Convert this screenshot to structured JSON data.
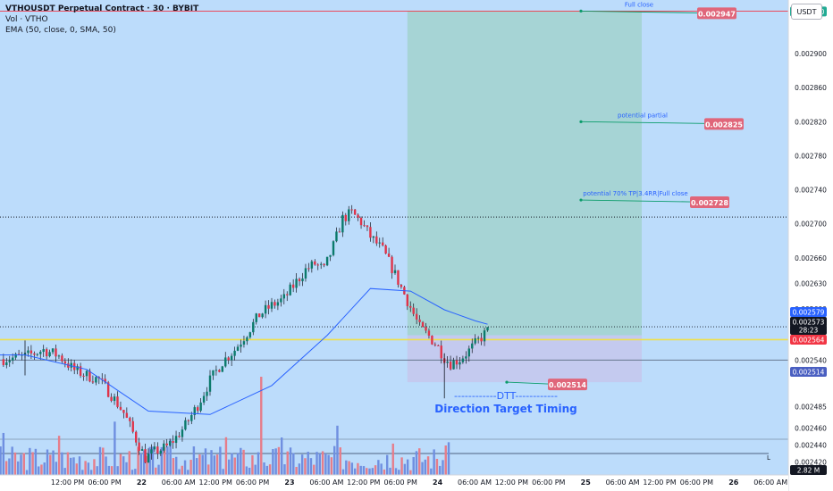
{
  "header": {
    "title": "VTHOUSDT Perpetual Contract · 30 · BYBIT",
    "volume": "Vol · VTHO",
    "ema": "EMA (50, close, 0, SMA, 50)"
  },
  "currency_label": "USDT",
  "chart_data": {
    "type": "candlestick",
    "symbol": "VTHOUSDT",
    "interval": "30",
    "exchange": "BYBIT",
    "ylim": [
      0.002405,
      0.002963
    ],
    "y_ticks": [
      0.0029,
      0.00286,
      0.00282,
      0.00278,
      0.00274,
      0.0027,
      0.00266,
      0.00263,
      0.0026,
      0.00254,
      0.002485,
      0.00246,
      0.00244,
      0.00242
    ],
    "price_badges": [
      {
        "value": "0.002950",
        "color": "#22ab94"
      },
      {
        "value": "0.002579",
        "color": "#2962ff"
      },
      {
        "value": "0.002573",
        "color": "#131722"
      },
      {
        "value": "28:23",
        "color": "#131722"
      },
      {
        "value": "0.002564",
        "color": "#f23645"
      },
      {
        "value": "0.002514",
        "color": "#4a5fc1"
      },
      {
        "value": "2.82 M",
        "color": "#131722"
      }
    ],
    "x_ticks": [
      {
        "label": "12:00 PM",
        "t": -12
      },
      {
        "label": "06:00 PM",
        "t": 0
      },
      {
        "label": "22",
        "t": 12
      },
      {
        "label": "06:00 AM",
        "t": 24
      },
      {
        "label": "12:00 PM",
        "t": 36
      },
      {
        "label": "06:00 PM",
        "t": 48
      },
      {
        "label": "23",
        "t": 60
      },
      {
        "label": "06:00 AM",
        "t": 72
      },
      {
        "label": "12:00 PM",
        "t": 84
      },
      {
        "label": "06:00 PM",
        "t": 96
      },
      {
        "label": "24",
        "t": 108
      },
      {
        "label": "06:00 AM",
        "t": 120
      },
      {
        "label": "12:00 PM",
        "t": 132
      },
      {
        "label": "06:00 PM",
        "t": 144
      },
      {
        "label": "25",
        "t": 156
      },
      {
        "label": "06:00 AM",
        "t": 168
      },
      {
        "label": "12:00 PM",
        "t": 180
      },
      {
        "label": "06:00 PM",
        "t": 192
      },
      {
        "label": "26",
        "t": 204
      },
      {
        "label": "06:00 AM",
        "t": 216
      },
      {
        "label": "12:00 PM",
        "t": 228
      },
      {
        "label": "06:00",
        "t": 240
      }
    ],
    "anchors": [
      [
        -27,
        0.002541
      ],
      [
        -20,
        0.002544
      ],
      [
        -14,
        0.002552
      ],
      [
        -9,
        0.002545
      ],
      [
        -4,
        0.002528
      ],
      [
        0,
        0.002522
      ],
      [
        4,
        0.002517
      ],
      [
        8,
        0.002499
      ],
      [
        12,
        0.002478
      ],
      [
        16,
        0.002447
      ],
      [
        19,
        0.002425
      ],
      [
        22,
        0.002432
      ],
      [
        26,
        0.002438
      ],
      [
        29,
        0.002449
      ],
      [
        32,
        0.002463
      ],
      [
        36,
        0.002487
      ],
      [
        40,
        0.002516
      ],
      [
        44,
        0.002538
      ],
      [
        48,
        0.002552
      ],
      [
        52,
        0.002572
      ],
      [
        56,
        0.002593
      ],
      [
        60,
        0.002604
      ],
      [
        64,
        0.002612
      ],
      [
        68,
        0.002632
      ],
      [
        71,
        0.002646
      ],
      [
        74,
        0.002653
      ],
      [
        77,
        0.002646
      ],
      [
        80,
        0.002674
      ],
      [
        83,
        0.002706
      ],
      [
        86,
        0.002713
      ],
      [
        89,
        0.002702
      ],
      [
        92,
        0.002685
      ],
      [
        96,
        0.002669
      ],
      [
        99,
        0.002648
      ],
      [
        102,
        0.002625
      ],
      [
        105,
        0.002602
      ],
      [
        108,
        0.002578
      ],
      [
        111,
        0.002568
      ],
      [
        114,
        0.002555
      ],
      [
        116,
        0.002543
      ],
      [
        118,
        0.002536
      ],
      [
        121,
        0.002541
      ],
      [
        124,
        0.002551
      ],
      [
        127,
        0.002563
      ],
      [
        130,
        0.002574
      ]
    ],
    "ema_anchors": [
      [
        -40,
        0.002546
      ],
      [
        -20,
        0.002546
      ],
      [
        0,
        0.002529
      ],
      [
        20,
        0.00248
      ],
      [
        40,
        0.002476
      ],
      [
        60,
        0.00251
      ],
      [
        78,
        0.002569
      ],
      [
        92,
        0.002624
      ],
      [
        105,
        0.002621
      ],
      [
        116,
        0.002599
      ],
      [
        126,
        0.002586
      ],
      [
        130,
        0.002582
      ]
    ],
    "volumes_note": "volume histogram, peak ~2.82 M",
    "horizontal_levels": [
      {
        "price": 0.00295,
        "style": "solid",
        "color": "#f23645"
      },
      {
        "price": 0.002708,
        "style": "dotted",
        "color": "#131722"
      },
      {
        "price": 0.002579,
        "style": "dotted",
        "color": "#131722"
      },
      {
        "price": 0.002564,
        "style": "solid",
        "color": "#f0e04a"
      },
      {
        "price": 0.00254,
        "style": "solid",
        "color": "#5a6a80"
      }
    ],
    "position_tool": {
      "entry": 0.002569,
      "stop": 0.002514,
      "target": 0.00295,
      "t_start": 104,
      "t_end": 180
    },
    "annotations": [
      {
        "text": "Full close",
        "price_badge": "0.002947",
        "price": 0.00295
      },
      {
        "text": "potential partial",
        "price_badge": "0.002825",
        "price": 0.00282
      },
      {
        "text": "potential 70% TP|3.4RR|Full close",
        "price_badge": "0.002728",
        "price": 0.002728
      },
      {
        "text": "",
        "price_badge": "0.002514",
        "price": 0.002514
      }
    ],
    "dtt_lines": [
      "------------DTT------------",
      "Direction Target Timing"
    ]
  }
}
